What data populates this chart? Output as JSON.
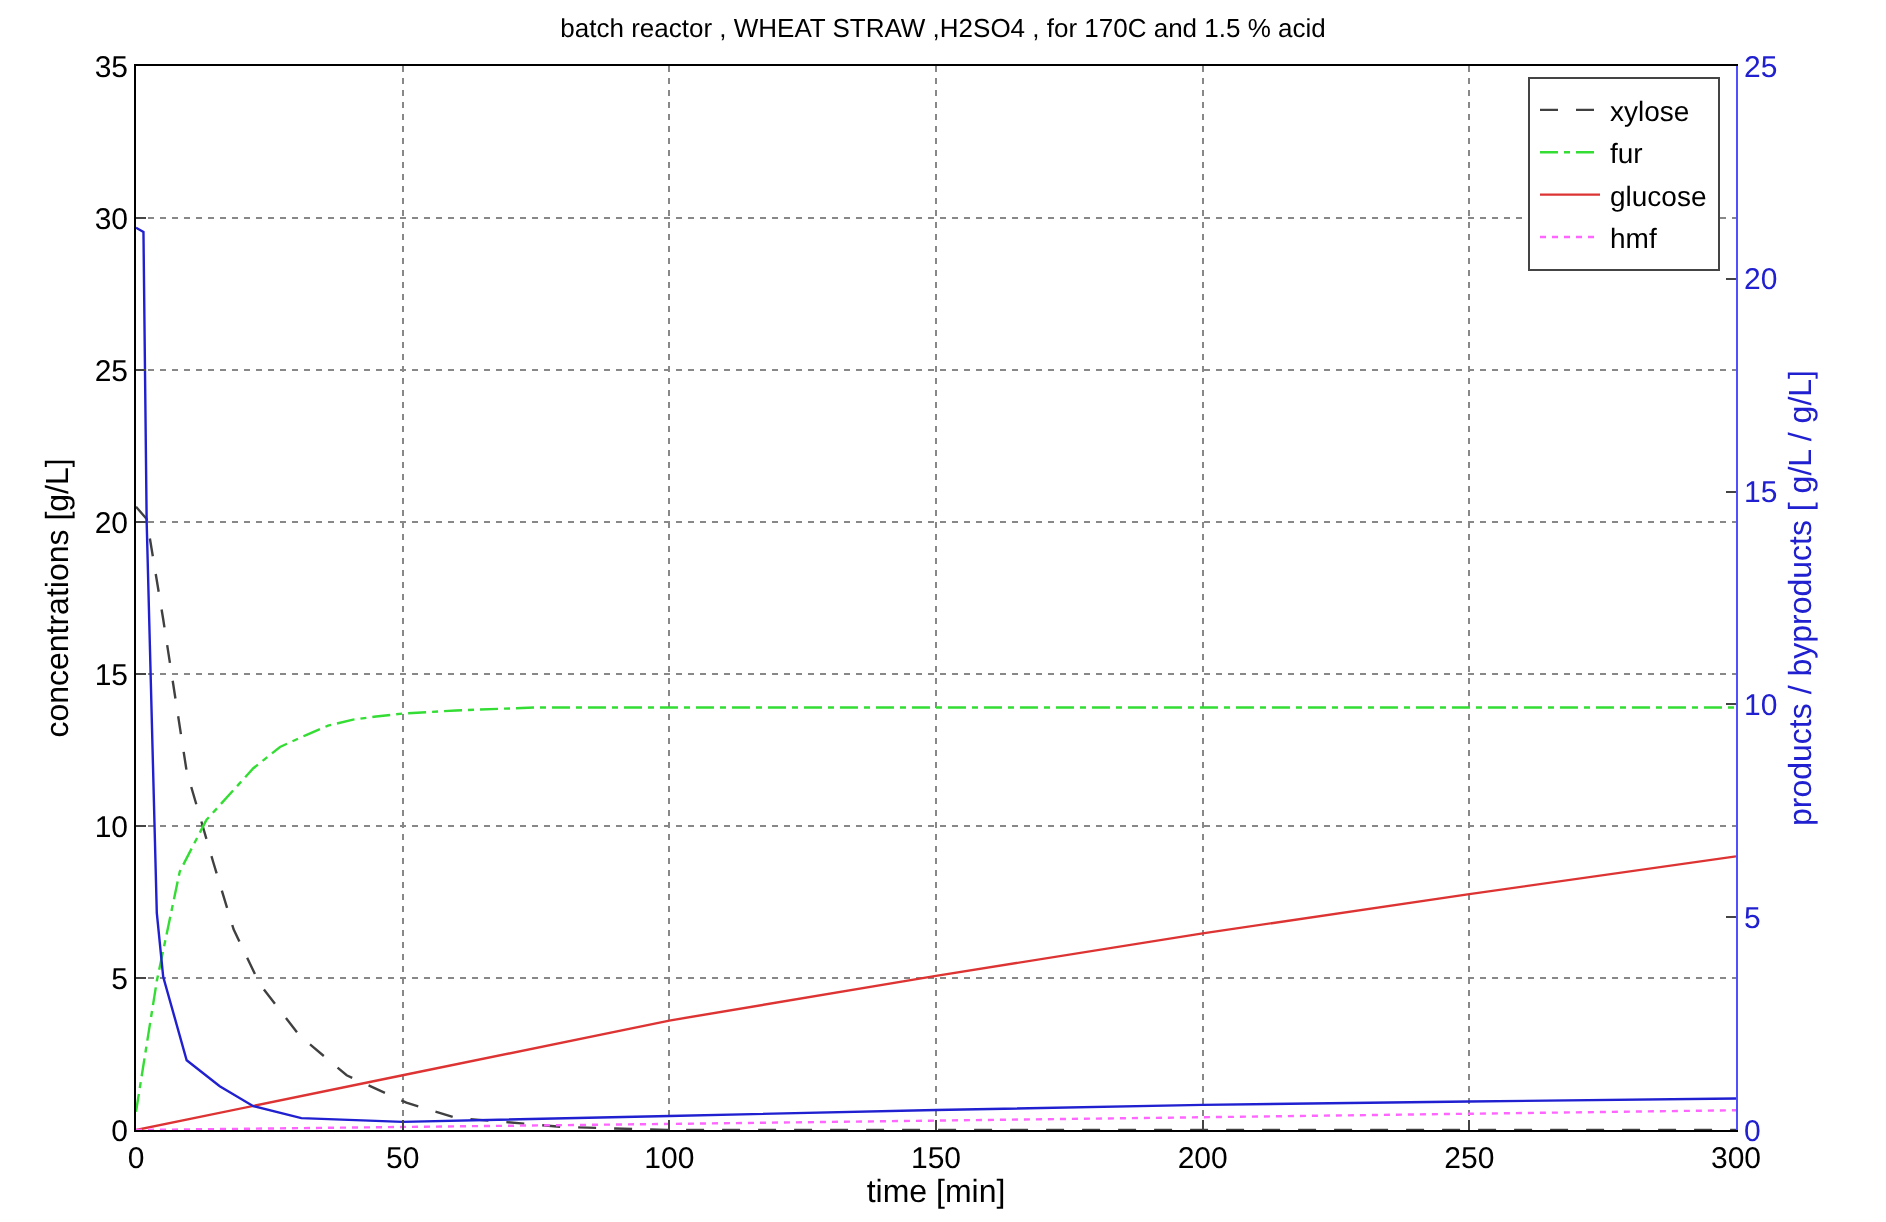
{
  "chart_data": {
    "type": "line",
    "title": "batch reactor , WHEAT STRAW ,H2SO4 , for 170C and 1.5 % acid",
    "xlabel": "time [min]",
    "ylabel": "concentrations [g/L]",
    "y2label": "products / byproducts [ g/L / g/L]",
    "xlim": [
      0,
      300
    ],
    "xticks": [
      0,
      50,
      100,
      150,
      200,
      250,
      300
    ],
    "ylim": [
      0,
      35
    ],
    "yticks": [
      0,
      5,
      10,
      15,
      20,
      25,
      30,
      35
    ],
    "y2lim": [
      0,
      25
    ],
    "y2ticks": [
      0,
      5,
      10,
      15,
      20,
      25
    ],
    "grid": true,
    "legend": "top right",
    "marker": "none",
    "series": [
      {
        "name": "xylose",
        "color": "#404040",
        "line_style": "dashed",
        "x": [
          0,
          2,
          5.1,
          9.5,
          14.5,
          18.3,
          23.2,
          30.7,
          39.5,
          50.7,
          60,
          80,
          100,
          150,
          200,
          250,
          300
        ],
        "values": [
          20.5,
          20.1,
          16.8,
          11.8,
          8.8,
          6.6,
          4.8,
          3.1,
          1.8,
          0.9,
          0.4,
          0.1,
          0,
          0,
          0,
          0,
          0
        ]
      },
      {
        "name": "fur",
        "color": "#33dd33",
        "line_style": "dashdot",
        "x": [
          0,
          3.9,
          8.2,
          13.2,
          22,
          27,
          32,
          36,
          40.7,
          45,
          50,
          60,
          75,
          100,
          150,
          200,
          250,
          300
        ],
        "values": [
          0.6,
          4.9,
          8.5,
          10.2,
          11.9,
          12.6,
          13.0,
          13.3,
          13.5,
          13.6,
          13.7,
          13.8,
          13.9,
          13.9,
          13.9,
          13.9,
          13.9,
          13.9
        ]
      },
      {
        "name": "glucose",
        "color": "#dd3333",
        "line_style": "solid",
        "x": [
          0,
          50,
          100,
          150,
          200,
          250,
          300
        ],
        "values": [
          0,
          1.8,
          3.6,
          5.07,
          6.47,
          7.76,
          9.0
        ]
      },
      {
        "name": "hmf",
        "color": "#ff66ff",
        "line_style": "dotted",
        "x": [
          0,
          100,
          200,
          300
        ],
        "values": [
          0,
          0.2,
          0.42,
          0.65
        ]
      },
      {
        "color": "#2020d0",
        "line_style": "solid",
        "axis": "y2",
        "x": [
          0,
          1.4,
          2,
          2.6,
          3.9,
          5.1,
          9.5,
          15.7,
          22,
          31,
          50,
          100,
          150,
          200,
          250,
          300
        ],
        "values": [
          21.2,
          21.1,
          14.3,
          11.4,
          5.1,
          3.6,
          1.64,
          1.03,
          0.56,
          0.28,
          0.19,
          0.33,
          0.47,
          0.59,
          0.67,
          0.74
        ]
      }
    ]
  }
}
